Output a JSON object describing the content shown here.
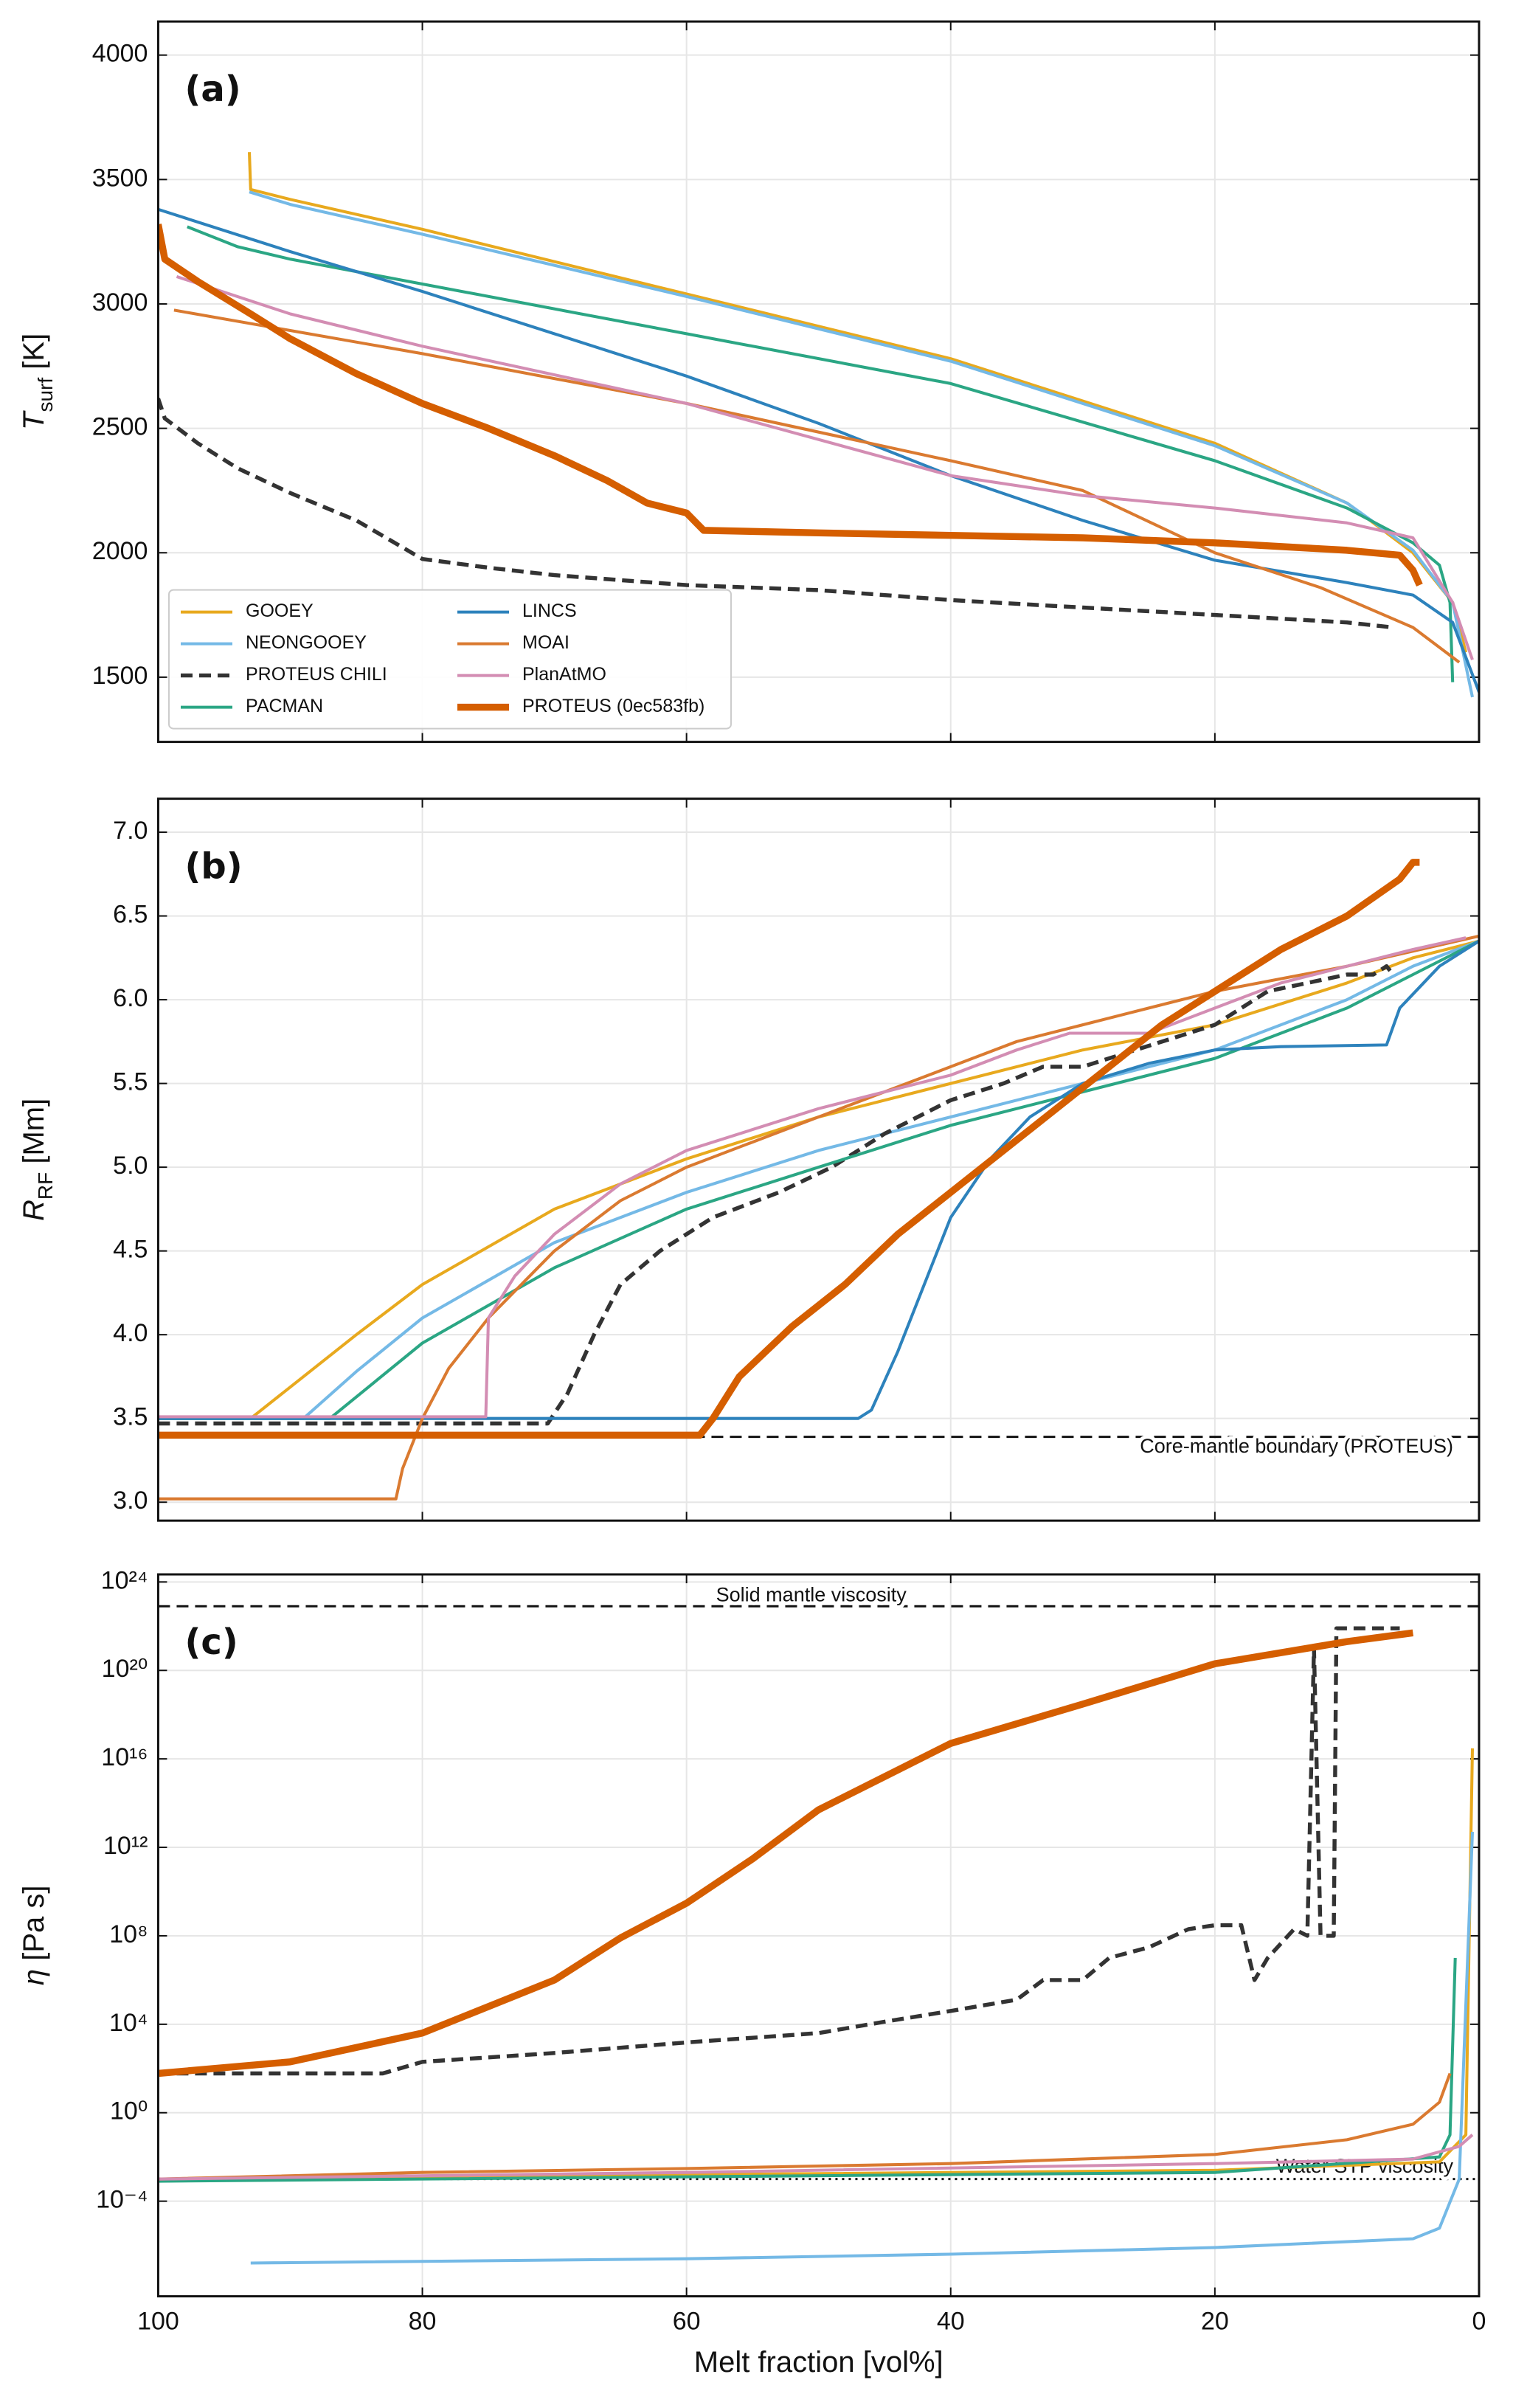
{
  "chart_data": [
    {
      "type": "line",
      "label": "(a)",
      "ylabel_symbol": "T",
      "ylabel_subscript": "surf",
      "ylabel_unit": "[K]",
      "xlim": [
        100,
        0
      ],
      "xticks": [
        100,
        80,
        60,
        40,
        20,
        0
      ],
      "xtick_labels": false,
      "ylim": [
        1240,
        4135
      ],
      "yticks": [
        1500,
        2000,
        2500,
        3000,
        3500,
        4000
      ],
      "grid": true,
      "legend": "lower left",
      "legend_columns": 2,
      "series": [
        {
          "name": "GOOEY",
          "color": "#E8A91E",
          "linestyle": "solid",
          "linewidth": 1.5,
          "x": [
            93.1,
            93,
            90,
            80,
            60,
            40,
            20,
            10,
            5,
            2,
            1
          ],
          "values": [
            3610,
            3460,
            3420,
            3300,
            3040,
            2780,
            2440,
            2200,
            2000,
            1800,
            1600
          ]
        },
        {
          "name": "NEONGOOEY",
          "color": "#74B9E6",
          "linestyle": "solid",
          "linewidth": 1.5,
          "x": [
            93.1,
            90,
            80,
            60,
            40,
            20,
            10,
            5,
            2,
            0.5
          ],
          "values": [
            3450,
            3400,
            3280,
            3030,
            2770,
            2430,
            2200,
            2010,
            1800,
            1420
          ]
        },
        {
          "name": "PROTEUS CHILI",
          "color": "#333333",
          "linestyle": "dashed",
          "linewidth": 2,
          "x": [
            100,
            99.5,
            97,
            94,
            90,
            85,
            80,
            75,
            70,
            60,
            50,
            40,
            30,
            20,
            15,
            10,
            6.5
          ],
          "values": [
            2620,
            2540,
            2440,
            2340,
            2240,
            2130,
            1975,
            1940,
            1910,
            1870,
            1850,
            1810,
            1780,
            1750,
            1735,
            1720,
            1700
          ]
        },
        {
          "name": "PACMAN",
          "color": "#2BA684",
          "linestyle": "solid",
          "linewidth": 1.5,
          "x": [
            97.8,
            94,
            90,
            80,
            60,
            40,
            20,
            10,
            5,
            3,
            2.2,
            2
          ],
          "values": [
            3310,
            3230,
            3180,
            3080,
            2880,
            2680,
            2370,
            2180,
            2040,
            1950,
            1800,
            1480
          ]
        },
        {
          "name": "LINCS",
          "color": "#2D82BC",
          "linestyle": "solid",
          "linewidth": 1.5,
          "x": [
            100,
            90,
            80,
            70,
            60,
            50,
            40,
            30,
            20,
            10,
            5,
            2,
            0
          ],
          "values": [
            3380,
            3210,
            3050,
            2880,
            2710,
            2520,
            2310,
            2130,
            1970,
            1880,
            1830,
            1720,
            1440
          ]
        },
        {
          "name": "MOAI",
          "color": "#DA7A30",
          "linestyle": "solid",
          "linewidth": 1.5,
          "x": [
            98.8,
            80,
            60,
            40,
            30,
            20,
            12,
            5,
            1.5
          ],
          "values": [
            2975,
            2800,
            2600,
            2370,
            2250,
            2000,
            1860,
            1700,
            1560
          ]
        },
        {
          "name": "PlanAtMO",
          "color": "#D38DB3",
          "linestyle": "solid",
          "linewidth": 1.5,
          "x": [
            98.6,
            90,
            80,
            60,
            40,
            30,
            20,
            10,
            5,
            2,
            0.5
          ],
          "values": [
            3110,
            2960,
            2830,
            2600,
            2310,
            2230,
            2180,
            2120,
            2060,
            1800,
            1570
          ]
        },
        {
          "name": "PROTEUS (0ec583fb)",
          "color": "#D55E00",
          "linestyle": "solid",
          "linewidth": 3.5,
          "x": [
            100,
            99.5,
            97,
            93,
            90,
            85,
            80,
            75,
            70,
            66,
            63,
            60,
            58.7,
            50,
            40,
            30,
            20,
            10,
            6,
            5,
            4.5
          ],
          "values": [
            3320,
            3180,
            3090,
            2960,
            2860,
            2720,
            2600,
            2500,
            2390,
            2290,
            2200,
            2160,
            2090,
            2080,
            2070,
            2060,
            2040,
            2010,
            1990,
            1930,
            1870
          ]
        }
      ]
    },
    {
      "type": "line",
      "label": "(b)",
      "ylabel_symbol": "R",
      "ylabel_subscript": "RF",
      "ylabel_unit": "[Mm]",
      "xlim": [
        100,
        0
      ],
      "xticks": [
        100,
        80,
        60,
        40,
        20,
        0
      ],
      "xtick_labels": false,
      "ylim": [
        2.89,
        7.2
      ],
      "yticks": [
        {
          "value": 3,
          "label": "3.0"
        },
        3.5,
        {
          "value": 4,
          "label": "4.0"
        },
        4.5,
        {
          "value": 5,
          "label": "5.0"
        },
        5.5,
        {
          "value": 6,
          "label": "6.0"
        },
        6.5,
        {
          "value": 7,
          "label": "7.0"
        }
      ],
      "grid": true,
      "hlines": [
        {
          "y": 3.39,
          "label": "Core-mantle boundary (PROTEUS)",
          "linestyle": "dashed"
        }
      ],
      "series": [
        {
          "color": "#E8A91E",
          "linestyle": "solid",
          "linewidth": 1.5,
          "x": [
            100,
            93,
            85,
            80,
            70,
            60,
            50,
            40,
            30,
            20,
            10,
            5,
            0
          ],
          "values": [
            3.5,
            3.5,
            4.0,
            4.3,
            4.75,
            5.05,
            5.3,
            5.5,
            5.7,
            5.85,
            6.1,
            6.25,
            6.35
          ]
        },
        {
          "color": "#74B9E6",
          "linestyle": "solid",
          "linewidth": 1.5,
          "x": [
            100,
            89,
            85,
            80,
            70,
            60,
            50,
            40,
            30,
            20,
            10,
            5,
            0
          ],
          "values": [
            3.5,
            3.5,
            3.78,
            4.1,
            4.55,
            4.85,
            5.1,
            5.3,
            5.5,
            5.7,
            6.0,
            6.2,
            6.35
          ]
        },
        {
          "color": "#333333",
          "linestyle": "dashed",
          "linewidth": 2,
          "x": [
            100,
            70.5,
            69,
            67,
            65,
            62,
            58,
            53,
            49,
            45,
            40,
            36,
            33,
            30,
            26,
            22,
            20,
            18,
            16,
            13,
            10,
            8,
            7,
            6.5
          ],
          "values": [
            3.47,
            3.47,
            3.65,
            4.0,
            4.3,
            4.5,
            4.7,
            4.85,
            5.0,
            5.2,
            5.4,
            5.5,
            5.6,
            5.6,
            5.7,
            5.8,
            5.85,
            5.95,
            6.05,
            6.1,
            6.15,
            6.15,
            6.2,
            6.15
          ]
        },
        {
          "color": "#2BA684",
          "linestyle": "solid",
          "linewidth": 1.5,
          "x": [
            100,
            87,
            80,
            70,
            60,
            50,
            40,
            30,
            20,
            10,
            5,
            0
          ],
          "values": [
            3.5,
            3.5,
            3.95,
            4.4,
            4.75,
            5.0,
            5.25,
            5.45,
            5.65,
            5.95,
            6.15,
            6.35
          ]
        },
        {
          "color": "#2D82BC",
          "linestyle": "solid",
          "linewidth": 1.5,
          "x": [
            100,
            47,
            46,
            44,
            42,
            40,
            37,
            34,
            30,
            25,
            20,
            15,
            7,
            6,
            3,
            0
          ],
          "values": [
            3.5,
            3.5,
            3.55,
            3.9,
            4.3,
            4.7,
            5.05,
            5.3,
            5.5,
            5.62,
            5.7,
            5.72,
            5.73,
            5.95,
            6.2,
            6.35
          ]
        },
        {
          "color": "#DA7A30",
          "linestyle": "solid",
          "linewidth": 1.5,
          "x": [
            100,
            82,
            81.5,
            80,
            78,
            75,
            70,
            65,
            60,
            50,
            40,
            35,
            30,
            25,
            20,
            10,
            0
          ],
          "values": [
            3.02,
            3.02,
            3.2,
            3.5,
            3.8,
            4.1,
            4.5,
            4.8,
            5.0,
            5.3,
            5.6,
            5.75,
            5.85,
            5.95,
            6.05,
            6.2,
            6.38
          ]
        },
        {
          "color": "#D38DB3",
          "linestyle": "solid",
          "linewidth": 1.5,
          "x": [
            100,
            75.2,
            75,
            73,
            70,
            65,
            60,
            50,
            45,
            40,
            35,
            31,
            25,
            20,
            15,
            10,
            5,
            1
          ],
          "values": [
            3.51,
            3.51,
            4.1,
            4.35,
            4.6,
            4.9,
            5.1,
            5.35,
            5.45,
            5.55,
            5.7,
            5.8,
            5.8,
            5.95,
            6.1,
            6.2,
            6.3,
            6.37
          ]
        },
        {
          "color": "#D55E00",
          "linestyle": "solid",
          "linewidth": 3.5,
          "x": [
            100,
            59,
            58,
            56,
            52,
            48,
            44,
            40,
            36,
            32,
            28,
            24,
            20,
            15,
            10,
            6,
            5,
            4.5
          ],
          "values": [
            3.4,
            3.4,
            3.5,
            3.75,
            4.05,
            4.3,
            4.6,
            4.85,
            5.1,
            5.35,
            5.6,
            5.85,
            6.05,
            6.3,
            6.5,
            6.72,
            6.82,
            6.82
          ]
        }
      ]
    },
    {
      "type": "line",
      "label": "(c)",
      "ylabel_symbol": "η",
      "ylabel_unit": "[Pa s]",
      "xlabel": "Melt fraction [vol%]",
      "xlim": [
        100,
        0
      ],
      "xticks": [
        100,
        80,
        60,
        40,
        20,
        0
      ],
      "xtick_labels": true,
      "yscale": "log",
      "ylim": [
        5e-09,
        2.2e+24
      ],
      "yticks": [
        {
          "value": 0.0001,
          "label": "10⁻⁴"
        },
        {
          "value": 1,
          "label": "10⁰"
        },
        {
          "value": 10000.0,
          "label": "10⁴"
        },
        {
          "value": 100000000.0,
          "label": "10⁸"
        },
        {
          "value": 1000000000000.0,
          "label": "10¹²"
        },
        {
          "value": 1e+16,
          "label": "10¹⁶"
        },
        {
          "value": 1e+20,
          "label": "10²⁰"
        },
        {
          "value": 1e+24,
          "label": "10²⁴"
        }
      ],
      "grid": true,
      "hlines": [
        {
          "y": 8e+22,
          "label": "Solid mantle viscosity",
          "linestyle": "dashed"
        },
        {
          "y": 0.001,
          "label": "Water STP viscosity",
          "linestyle": "dotted"
        }
      ],
      "series": [
        {
          "color": "#E8A91E",
          "linestyle": "solid",
          "linewidth": 1.5,
          "x": [
            100,
            20,
            3,
            1,
            0.5
          ],
          "values": [
            0.001,
            0.0025,
            0.006,
            0.1,
            3e+16
          ]
        },
        {
          "color": "#74B9E6",
          "linestyle": "solid",
          "linewidth": 1.5,
          "x": [
            93,
            60,
            40,
            20,
            5,
            3,
            1.5,
            0.5
          ],
          "values": [
            1.6e-07,
            2.5e-07,
            4e-07,
            8e-07,
            2e-06,
            6e-06,
            0.001,
            5000000000000.0
          ]
        },
        {
          "color": "#333333",
          "linestyle": "dashed",
          "linewidth": 2,
          "x": [
            100,
            83,
            80,
            70,
            60,
            50,
            45,
            40,
            35,
            33,
            30,
            28,
            25,
            22,
            20,
            18,
            17,
            16,
            14,
            13,
            12.5,
            12,
            11,
            10.8,
            10,
            6
          ],
          "values": [
            60,
            60,
            200,
            500,
            1500,
            4000,
            13000,
            40000,
            130000,
            1000000.0,
            1000000.0,
            10000000.0,
            30000000.0,
            200000000.0,
            300000000.0,
            300000000.0,
            1000000.0,
            10000000.0,
            200000000.0,
            100000000.0,
            1e+21,
            100000000.0,
            100000000.0,
            8e+21,
            8e+21,
            8e+21
          ]
        },
        {
          "color": "#2BA684",
          "linestyle": "solid",
          "linewidth": 1.5,
          "x": [
            100,
            20,
            3,
            2.2,
            1.8
          ],
          "values": [
            0.0008,
            0.002,
            0.01,
            0.1,
            10000000.0
          ]
        },
        {
          "color": "#DA7A30",
          "linestyle": "solid",
          "linewidth": 1.5,
          "x": [
            100,
            80,
            60,
            40,
            20,
            10,
            5,
            3,
            2.2
          ],
          "values": [
            0.001,
            0.002,
            0.003,
            0.005,
            0.013,
            0.06,
            0.3,
            3,
            60
          ]
        },
        {
          "color": "#D38DB3",
          "linestyle": "solid",
          "linewidth": 1.5,
          "x": [
            100,
            60,
            20,
            5,
            1.5,
            0.5
          ],
          "values": [
            0.001,
            0.002,
            0.005,
            0.008,
            0.03,
            0.1
          ]
        },
        {
          "color": "#D55E00",
          "linestyle": "solid",
          "linewidth": 3.5,
          "x": [
            100,
            90,
            80,
            70,
            65,
            60,
            55,
            50,
            40,
            30,
            20,
            10,
            5
          ],
          "values": [
            60,
            200,
            4000,
            1000000.0,
            80000000.0,
            3000000000.0,
            300000000000.0,
            50000000000000.0,
            5e+16,
            3e+18,
            2e+20,
            2e+21,
            5e+21
          ]
        }
      ]
    }
  ]
}
